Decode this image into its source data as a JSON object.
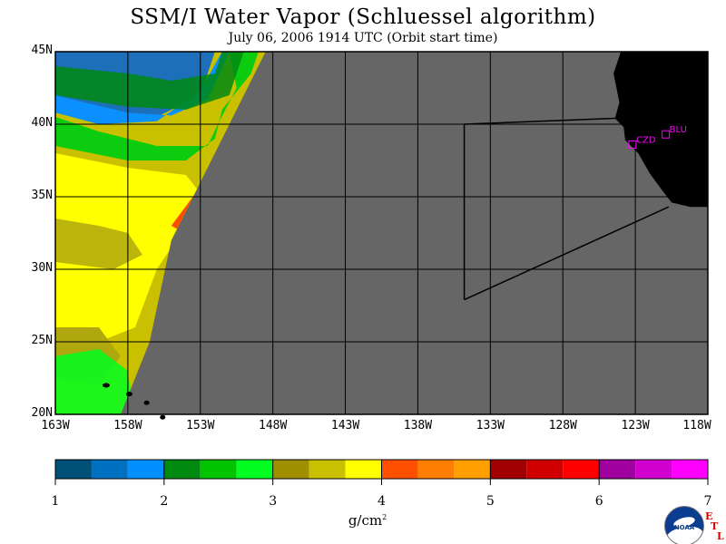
{
  "title": "SSM/I Water Vapor (Schluessel algorithm)",
  "subtitle": "July 06, 2006  1914 UTC  (Orbit start time)",
  "colors": {
    "no_data": "#666666",
    "land": "#000000",
    "grid": "#000000",
    "station": "#ff00ff"
  },
  "map": {
    "lat_labels": [
      "45N",
      "40N",
      "35N",
      "30N",
      "25N",
      "20N"
    ],
    "lon_labels": [
      "163W",
      "158W",
      "153W",
      "148W",
      "143W",
      "138W",
      "133W",
      "128W",
      "123W",
      "118W"
    ],
    "lat_values": [
      45,
      40,
      35,
      30,
      25,
      20
    ],
    "lon_values": [
      -163,
      -158,
      -153,
      -148,
      -143,
      -138,
      -133,
      -128,
      -123,
      -118
    ],
    "lat_range": [
      20,
      45
    ],
    "lon_range": [
      -163,
      -118
    ],
    "swath_east_edge": [
      [
        -148.5,
        45
      ],
      [
        -155,
        32
      ],
      [
        -156.5,
        25
      ],
      [
        -158.5,
        20
      ]
    ],
    "swath_zones": [
      {
        "name": "dark-blue-zone",
        "color": "#1c6fb8",
        "points": [
          [
            -163,
            45
          ],
          [
            -152,
            45
          ],
          [
            -153,
            42
          ],
          [
            -156,
            40.5
          ],
          [
            -160,
            40.5
          ],
          [
            -163,
            41
          ]
        ]
      },
      {
        "name": "light-blue-zone",
        "color": "#0a90ff",
        "points": [
          [
            -163,
            42
          ],
          [
            -161,
            41.5
          ],
          [
            -158,
            40.8
          ],
          [
            -155,
            40.6
          ],
          [
            -152.5,
            41.7
          ],
          [
            -151,
            45
          ],
          [
            -151.5,
            45
          ],
          [
            -153,
            42.3
          ],
          [
            -156,
            40.2
          ],
          [
            -160,
            40
          ],
          [
            -163,
            40.8
          ]
        ]
      },
      {
        "name": "green-zone",
        "color": "#0ccc10",
        "points": [
          [
            -163,
            40.5
          ],
          [
            -160,
            39.5
          ],
          [
            -156,
            38.5
          ],
          [
            -152.5,
            38.5
          ],
          [
            -151.8,
            40
          ],
          [
            -150.5,
            42.5
          ],
          [
            -151,
            45
          ],
          [
            -149,
            45
          ],
          [
            -149.5,
            43.5
          ],
          [
            -151.5,
            41
          ],
          [
            -152,
            39
          ],
          [
            -154,
            37.5
          ],
          [
            -158,
            37.5
          ],
          [
            -163,
            38.5
          ]
        ]
      },
      {
        "name": "yellow-zone",
        "color": "#ffff00",
        "points": [
          [
            -163,
            38
          ],
          [
            -158,
            37
          ],
          [
            -154,
            36.5
          ],
          [
            -152.8,
            35
          ],
          [
            -154,
            33
          ],
          [
            -156,
            30
          ],
          [
            -157.5,
            26
          ],
          [
            -160,
            25
          ],
          [
            -163,
            25.5
          ]
        ]
      },
      {
        "name": "olive-zone",
        "color": "#b0a80f",
        "points": [
          [
            -163,
            26
          ],
          [
            -160,
            26
          ],
          [
            -158.5,
            24
          ],
          [
            -160,
            22
          ],
          [
            -163,
            22.5
          ]
        ]
      },
      {
        "name": "orange-zone",
        "color": "#ff4d00",
        "points": [
          [
            -153.3,
            35.3
          ],
          [
            -152.6,
            35.5
          ],
          [
            -153.4,
            33.7
          ],
          [
            -154.3,
            32.6
          ],
          [
            -155,
            33
          ]
        ]
      }
    ],
    "stations": [
      {
        "code": "CZD",
        "lat": 38.6,
        "lon": -123.2
      },
      {
        "code": "BLU",
        "lat": 39.3,
        "lon": -120.9
      }
    ],
    "box_lines": [
      [
        [
          -134.8,
          40
        ],
        [
          -122,
          40.5
        ]
      ],
      [
        [
          -134.8,
          40
        ],
        [
          -134.8,
          27.9
        ]
      ],
      [
        [
          -134.8,
          27.9
        ],
        [
          -120.7,
          34.3
        ]
      ]
    ]
  },
  "colorbar": {
    "colors": [
      "#00507a",
      "#0070c0",
      "#0090ff",
      "#008a10",
      "#00c400",
      "#00ff20",
      "#a09000",
      "#c8c000",
      "#ffff00",
      "#ff5000",
      "#ff7d00",
      "#ffa000",
      "#a00000",
      "#d00000",
      "#ff0000",
      "#a000a0",
      "#d000d0",
      "#ff00ff"
    ],
    "ticks": [
      "1",
      "2",
      "3",
      "4",
      "5",
      "6",
      "7"
    ],
    "unit": "g/cm",
    "unit_sup": "2"
  },
  "logo": {
    "text": "NOAA",
    "etl": [
      "E",
      "T",
      "L"
    ]
  }
}
